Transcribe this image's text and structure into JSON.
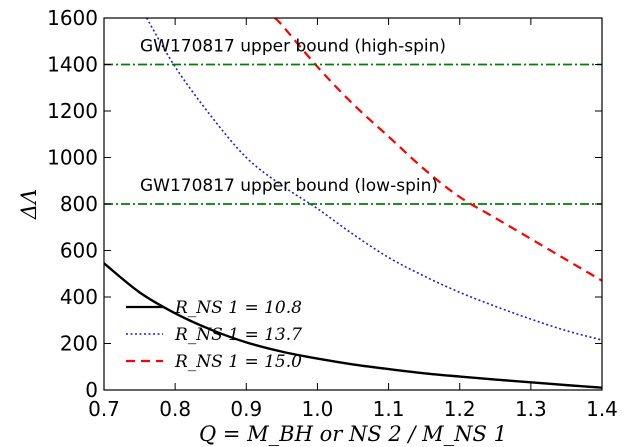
{
  "chart_data": {
    "type": "line",
    "xlabel": "Q = M_BH or NS 2 / M_NS 1",
    "ylabel": "ΔΛ",
    "xlim": [
      0.7,
      1.4
    ],
    "ylim": [
      0,
      1600
    ],
    "x_ticks": [
      "0.7",
      "0.8",
      "0.9",
      "1.0",
      "1.1",
      "1.2",
      "1.3",
      "1.4"
    ],
    "y_ticks": [
      "0",
      "200",
      "400",
      "600",
      "800",
      "1000",
      "1200",
      "1400",
      "1600"
    ],
    "grid": false,
    "legend_position": "lower-left",
    "series": [
      {
        "name": "R_NS 1 = 10.8",
        "color": "#000000",
        "style": "solid",
        "x": [
          0.7,
          0.75,
          0.8,
          0.85,
          0.9,
          0.95,
          1.0,
          1.05,
          1.1,
          1.15,
          1.2,
          1.25,
          1.3,
          1.35,
          1.4
        ],
        "y": [
          545,
          420,
          330,
          260,
          205,
          165,
          135,
          110,
          90,
          72,
          58,
          45,
          33,
          21,
          10
        ]
      },
      {
        "name": "R_NS 1 = 13.7",
        "color": "#1f1fd0",
        "style": "dotted",
        "x": [
          0.76,
          0.8,
          0.85,
          0.9,
          0.95,
          1.0,
          1.05,
          1.1,
          1.15,
          1.2,
          1.25,
          1.3,
          1.35,
          1.4
        ],
        "y": [
          1600,
          1390,
          1180,
          1000,
          880,
          780,
          670,
          570,
          490,
          420,
          360,
          305,
          255,
          215
        ]
      },
      {
        "name": "R_NS 1 = 15.0",
        "color": "#ff0000",
        "style": "dashed",
        "x": [
          0.94,
          0.95,
          1.0,
          1.05,
          1.1,
          1.15,
          1.2,
          1.25,
          1.3,
          1.35,
          1.4
        ],
        "y": [
          1600,
          1570,
          1390,
          1230,
          1090,
          950,
          830,
          740,
          650,
          560,
          470
        ]
      }
    ],
    "reference_lines": [
      {
        "y": 1400,
        "label": "GW170817 upper bound (high-spin)",
        "color": "#008000",
        "style": "dashdot"
      },
      {
        "y": 800,
        "label": "GW170817 upper bound (low-spin)",
        "color": "#008000",
        "style": "dashdot"
      }
    ]
  }
}
